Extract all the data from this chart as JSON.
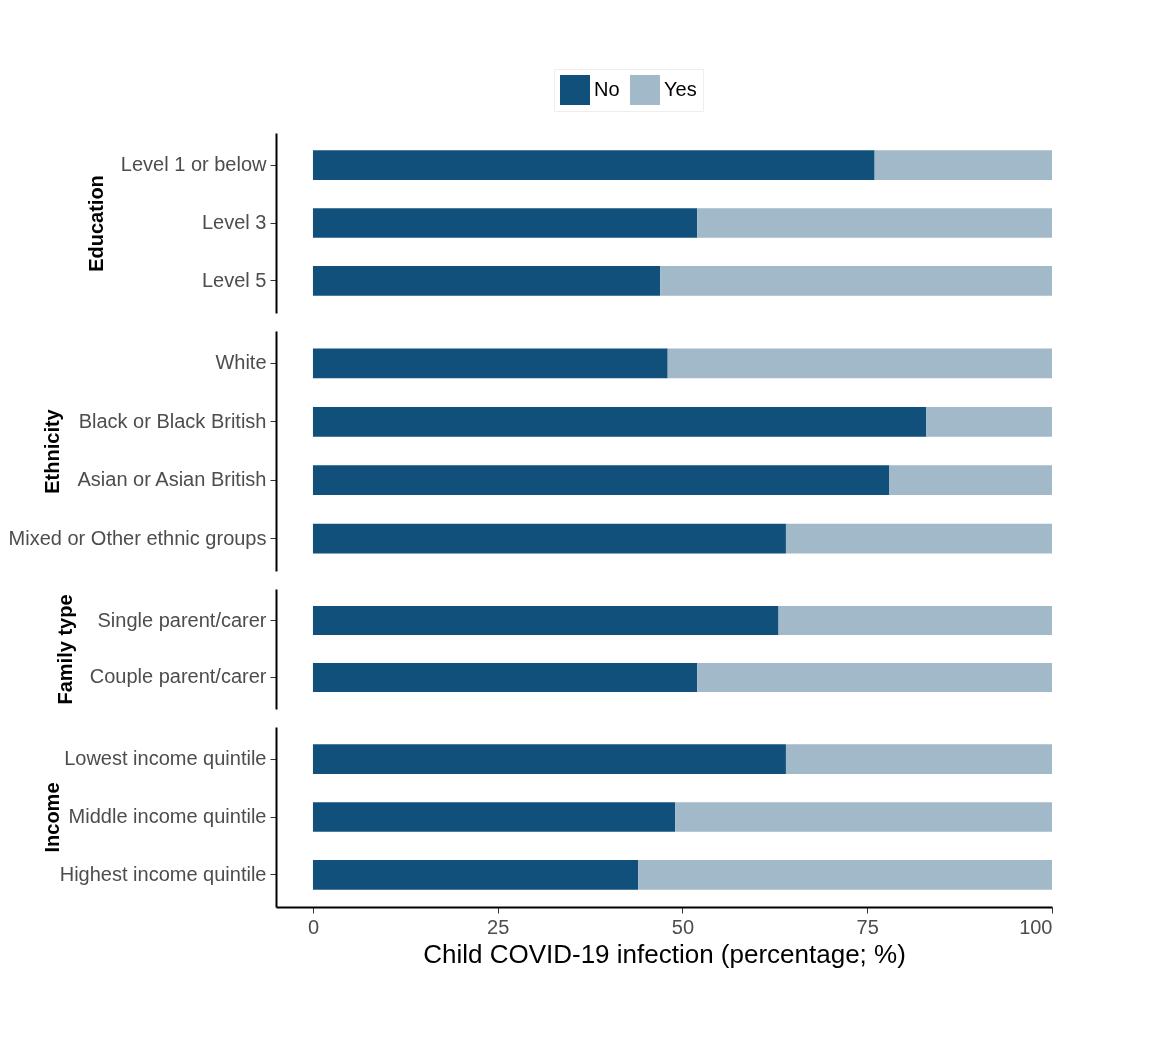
{
  "chart_data": [
    {
      "type": "bar",
      "orientation": "horizontal",
      "stacked": true,
      "ylabel": "Education",
      "categories": [
        "Level 1 or below",
        "Level 3",
        "Level 5"
      ],
      "legend": "top",
      "tick_labels": "y",
      "xlim": [
        -5,
        100
      ],
      "series": [
        {
          "name": "No",
          "color": "#11507a",
          "values": [
            76,
            52,
            47
          ]
        },
        {
          "name": "Yes",
          "color": "#a2b9c9",
          "values": [
            24,
            48,
            53
          ]
        }
      ]
    },
    {
      "type": "bar",
      "orientation": "horizontal",
      "stacked": true,
      "ylabel": "Ethnicity",
      "categories": [
        "White",
        "Black or Black British",
        "Asian or Asian British",
        "Mixed or Other ethnic groups"
      ],
      "tick_labels": "y",
      "xlim": [
        -5,
        100
      ],
      "series": [
        {
          "color": "#11507a",
          "values": [
            48,
            83,
            78,
            64
          ]
        },
        {
          "color": "#a2b9c9",
          "values": [
            52,
            17,
            22,
            36
          ]
        }
      ]
    },
    {
      "type": "bar",
      "orientation": "horizontal",
      "stacked": true,
      "ylabel": "Family type",
      "categories": [
        "Single parent/carer",
        "Couple parent/carer"
      ],
      "tick_labels": "y",
      "xlim": [
        -5,
        100
      ],
      "series": [
        {
          "color": "#11507a",
          "values": [
            63,
            52
          ]
        },
        {
          "color": "#a2b9c9",
          "values": [
            37,
            48
          ]
        }
      ]
    },
    {
      "type": "bar",
      "orientation": "horizontal",
      "stacked": true,
      "ylabel": "Income",
      "xlabel": "Child COVID-19 infection (percentage; %)",
      "categories": [
        "Lowest income quintile",
        "Middle income quintile",
        "Highest income quintile"
      ],
      "xlim": [
        -5,
        100
      ],
      "xticks": [
        0,
        25,
        50,
        75,
        100
      ],
      "series": [
        {
          "color": "#11507a",
          "values": [
            64,
            49,
            44
          ]
        },
        {
          "color": "#a2b9c9",
          "values": [
            36,
            51,
            56
          ]
        }
      ]
    }
  ]
}
